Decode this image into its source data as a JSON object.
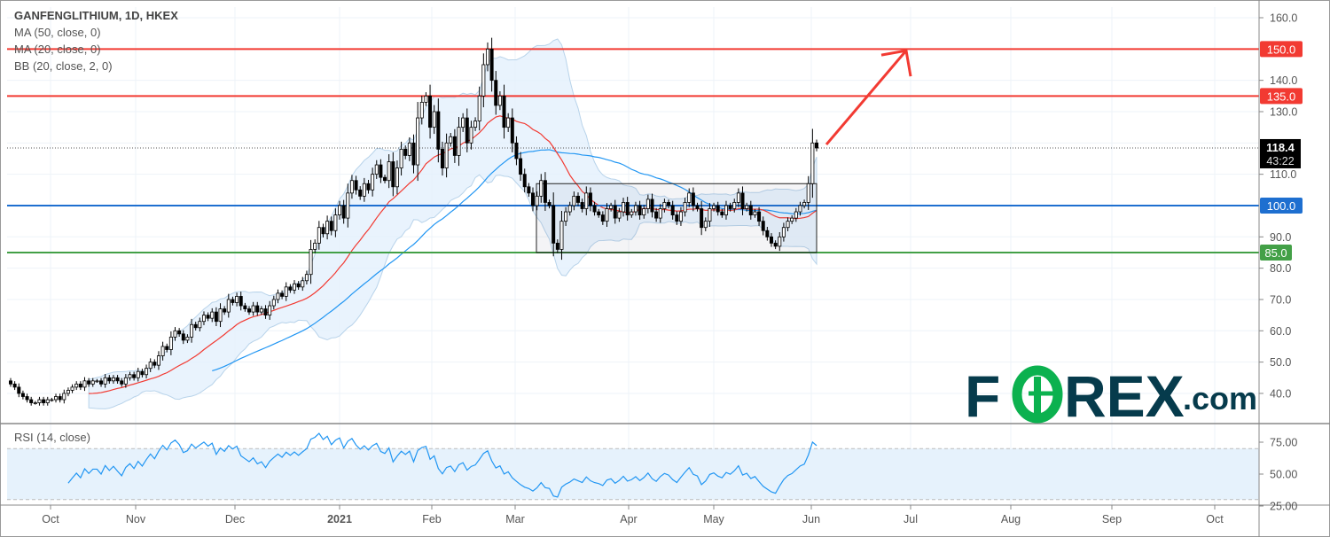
{
  "legend": {
    "title": "GANFENGLITHIUM, 1D, HKEX",
    "indicators": [
      "MA (50, close, 0)",
      "MA (20, close, 0)",
      "BB (20, close, 2, 0)"
    ]
  },
  "rsi_legend": "RSI (14, close)",
  "logo": {
    "main": "FOREX",
    "suffix": ".com",
    "dark": "#063b4c",
    "green": "#0bb14f"
  },
  "colors": {
    "ma50": "#2196f3",
    "ma20": "#f23a32",
    "bb_fill": "#e3f0fc",
    "bb_line": "#b8d3ea",
    "resistance": "#f23a32",
    "support_mid": "#1e6fd0",
    "support_low": "#43a047",
    "rsi": "#2196f3"
  },
  "chart_data": [
    {
      "type": "candlestick",
      "title": "GANFENGLITHIUM, 1D, HKEX",
      "ylim": [
        30,
        162
      ],
      "yticks": [
        "160.0",
        "140.0",
        "130.0",
        "110.0",
        "90.0",
        "80.0",
        "70.0",
        "60.0",
        "50.0",
        "40.0"
      ],
      "yticks_values": [
        160,
        140,
        130,
        110,
        90,
        80,
        70,
        60,
        50,
        40
      ],
      "xticks": [
        "Oct",
        "Nov",
        "Dec",
        "2021",
        "Feb",
        "Mar",
        "Apr",
        "May",
        "Jun",
        "Jul",
        "Aug",
        "Sep",
        "Oct"
      ],
      "close": [
        43,
        42,
        40,
        39,
        38,
        37,
        37,
        38,
        37,
        38,
        38,
        39,
        38,
        40,
        41,
        42,
        43,
        42,
        44,
        43,
        44,
        44,
        43,
        45,
        44,
        45,
        44,
        43,
        45,
        46,
        45,
        47,
        46,
        48,
        50,
        49,
        52,
        55,
        54,
        58,
        60,
        59,
        57,
        58,
        62,
        61,
        63,
        65,
        64,
        66,
        63,
        67,
        66,
        70,
        69,
        71,
        68,
        67,
        66,
        68,
        66,
        67,
        65,
        68,
        70,
        72,
        71,
        74,
        73,
        75,
        74,
        76,
        78,
        86,
        88,
        93,
        91,
        95,
        92,
        97,
        100,
        96,
        104,
        108,
        105,
        103,
        107,
        105,
        110,
        113,
        109,
        108,
        114,
        106,
        112,
        118,
        116,
        120,
        113,
        128,
        133,
        135,
        125,
        130,
        118,
        112,
        120,
        122,
        116,
        125,
        128,
        120,
        125,
        127,
        135,
        145,
        150,
        140,
        132,
        135,
        125,
        128,
        120,
        115,
        110,
        106,
        104,
        100,
        103,
        108,
        101,
        100,
        88,
        86,
        95,
        98,
        100,
        103,
        101,
        99,
        104,
        100,
        98,
        97,
        95,
        99,
        100,
        96,
        98,
        101,
        97,
        98,
        100,
        97,
        99,
        102,
        98,
        96,
        99,
        101,
        100,
        97,
        95,
        98,
        101,
        104,
        100,
        99,
        93,
        95,
        99,
        100,
        98,
        97,
        100,
        99,
        101,
        104,
        99,
        100,
        97,
        98,
        95,
        92,
        90,
        88,
        87,
        90,
        93,
        95,
        96,
        98,
        100,
        101,
        107,
        120,
        118.4
      ],
      "last_price": "118.4",
      "countdown": "43:22",
      "levels": [
        {
          "value": 150,
          "label": "150.0",
          "role": "resistance"
        },
        {
          "value": 135,
          "label": "135.0",
          "role": "resistance"
        },
        {
          "value": 100,
          "label": "100.0",
          "role": "support_mid"
        },
        {
          "value": 85,
          "label": "85.0",
          "role": "support_low"
        }
      ],
      "range_box": {
        "top": 107,
        "bottom": 85,
        "from": "Mar",
        "to": "Jun"
      },
      "arrow": {
        "from_price": 119.5,
        "to_price": 149.5,
        "to_month": "Jul"
      }
    },
    {
      "type": "line",
      "title": "RSI (14, close)",
      "ylim": [
        22,
        82
      ],
      "yticks": [
        "75.00",
        "50.00",
        "25.00"
      ],
      "yticks_values": [
        75,
        50,
        25
      ],
      "bands": [
        30,
        70
      ]
    }
  ]
}
